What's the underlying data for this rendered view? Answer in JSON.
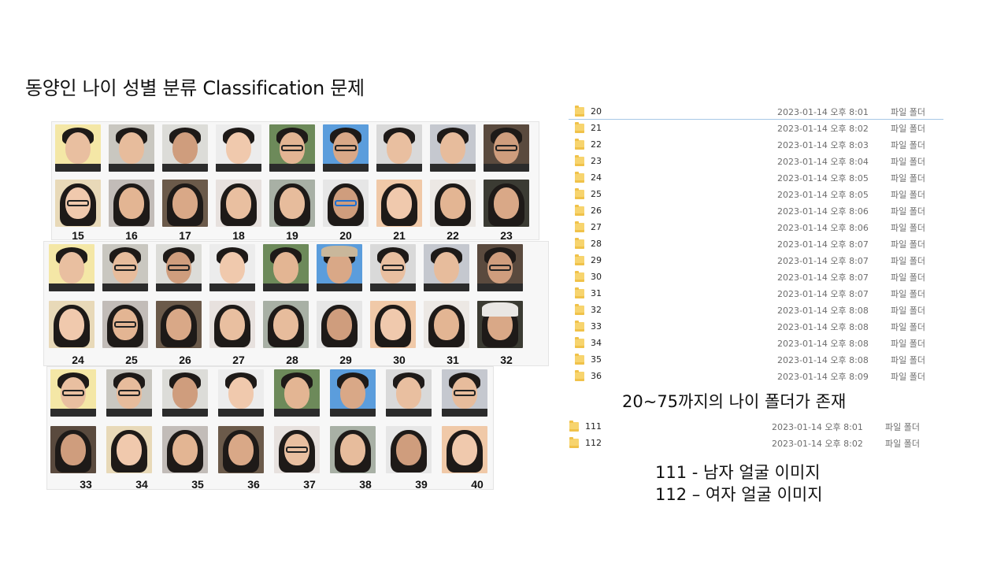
{
  "slide": {
    "title": "동양인 나이 성별 분류 Classification 문제",
    "caption_ages": "20~75까지의 나이 폴더가 존재",
    "legend_line1": "111 - 남자 얼굴 이미지",
    "legend_line2": "112 – 여자 얼굴 이미지"
  },
  "face_panels": [
    {
      "labels": [
        "15",
        "16",
        "17",
        "18",
        "19",
        "20",
        "21",
        "22",
        "23"
      ]
    },
    {
      "labels": [
        "24",
        "25",
        "26",
        "27",
        "28",
        "29",
        "30",
        "31",
        "32"
      ]
    },
    {
      "labels": [
        "33",
        "34",
        "35",
        "36",
        "37",
        "38",
        "39",
        "40"
      ]
    }
  ],
  "folders": [
    {
      "name": "20",
      "date": "2023-01-14 오후 8:01",
      "type": "파일 폴더"
    },
    {
      "name": "21",
      "date": "2023-01-14 오후 8:02",
      "type": "파일 폴더"
    },
    {
      "name": "22",
      "date": "2023-01-14 오후 8:03",
      "type": "파일 폴더"
    },
    {
      "name": "23",
      "date": "2023-01-14 오후 8:04",
      "type": "파일 폴더"
    },
    {
      "name": "24",
      "date": "2023-01-14 오후 8:05",
      "type": "파일 폴더"
    },
    {
      "name": "25",
      "date": "2023-01-14 오후 8:05",
      "type": "파일 폴더"
    },
    {
      "name": "26",
      "date": "2023-01-14 오후 8:06",
      "type": "파일 폴더"
    },
    {
      "name": "27",
      "date": "2023-01-14 오후 8:06",
      "type": "파일 폴더"
    },
    {
      "name": "28",
      "date": "2023-01-14 오후 8:07",
      "type": "파일 폴더"
    },
    {
      "name": "29",
      "date": "2023-01-14 오후 8:07",
      "type": "파일 폴더"
    },
    {
      "name": "30",
      "date": "2023-01-14 오후 8:07",
      "type": "파일 폴더"
    },
    {
      "name": "31",
      "date": "2023-01-14 오후 8:07",
      "type": "파일 폴더"
    },
    {
      "name": "32",
      "date": "2023-01-14 오후 8:08",
      "type": "파일 폴더"
    },
    {
      "name": "33",
      "date": "2023-01-14 오후 8:08",
      "type": "파일 폴더"
    },
    {
      "name": "34",
      "date": "2023-01-14 오후 8:08",
      "type": "파일 폴더"
    },
    {
      "name": "35",
      "date": "2023-01-14 오후 8:08",
      "type": "파일 폴더"
    },
    {
      "name": "36",
      "date": "2023-01-14 오후 8:09",
      "type": "파일 폴더"
    }
  ],
  "gender_folders": [
    {
      "name": "111",
      "date": "2023-01-14 오후 8:01",
      "type": "파일 폴더"
    },
    {
      "name": "112",
      "date": "2023-01-14 오후 8:02",
      "type": "파일 폴더"
    }
  ],
  "icons": {
    "folder": "folder-icon"
  },
  "colors": {
    "folder": "#f7d46e",
    "selection_line": "#a6c8e6"
  }
}
